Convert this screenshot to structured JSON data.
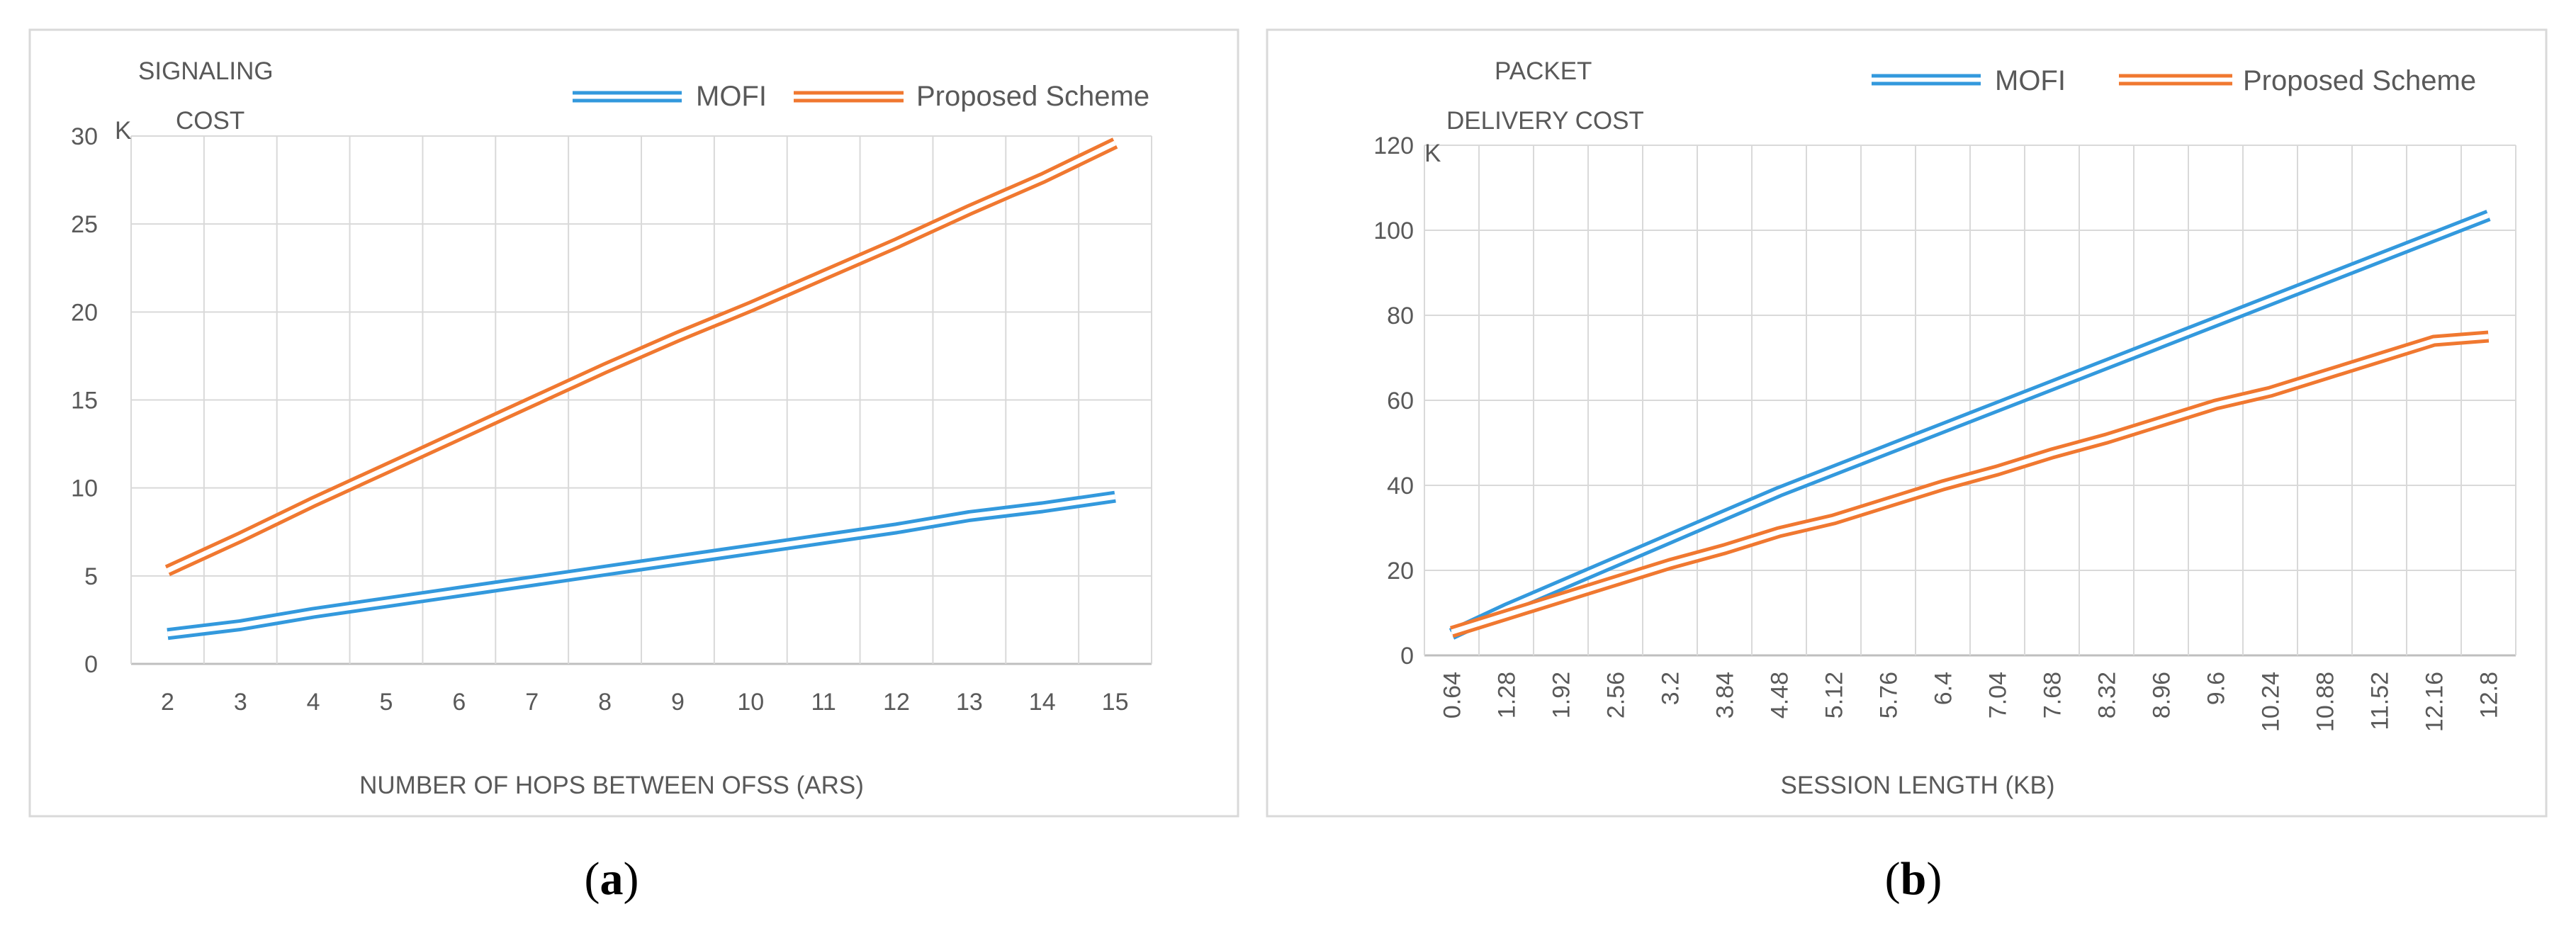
{
  "chart_data": [
    {
      "type": "line",
      "panel_label": "a",
      "ylabel_lines": [
        "SIGNALING",
        "COST"
      ],
      "y_unit": "K",
      "xlabel": "NUMBER OF HOPS BETWEEN OFSS (ARS)",
      "categories": [
        "2",
        "3",
        "4",
        "5",
        "6",
        "7",
        "8",
        "9",
        "10",
        "11",
        "12",
        "13",
        "14",
        "15"
      ],
      "ylim": [
        0,
        30
      ],
      "yticks": [
        0,
        5,
        10,
        15,
        20,
        25,
        30
      ],
      "grid": true,
      "legend_position": "top-right",
      "series": [
        {
          "name": "MOFI",
          "color": "#3399DD",
          "values": [
            1.7,
            2.2,
            2.9,
            3.5,
            4.1,
            4.7,
            5.3,
            5.9,
            6.5,
            7.1,
            7.7,
            8.4,
            8.9,
            9.5
          ]
        },
        {
          "name": "Proposed Scheme",
          "color": "#F07830",
          "values": [
            5.3,
            7.2,
            9.2,
            11.1,
            13.0,
            14.9,
            16.8,
            18.6,
            20.3,
            22.1,
            23.9,
            25.8,
            27.6,
            29.6
          ]
        }
      ]
    },
    {
      "type": "line",
      "panel_label": "b",
      "ylabel_lines": [
        "PACKET",
        "DELIVERY COST"
      ],
      "y_unit": "K",
      "xlabel": "SESSION LENGTH (KB)",
      "categories": [
        "0.64",
        "1.28",
        "1.92",
        "2.56",
        "3.2",
        "3.84",
        "4.48",
        "5.12",
        "5.76",
        "6.4",
        "7.04",
        "7.68",
        "8.32",
        "8.96",
        "9.6",
        "10.24",
        "10.88",
        "11.52",
        "12.16",
        "12.8"
      ],
      "ylim": [
        0,
        120
      ],
      "yticks": [
        0,
        20,
        40,
        60,
        80,
        100,
        120
      ],
      "grid": true,
      "legend_position": "top-right",
      "series": [
        {
          "name": "MOFI",
          "color": "#3399DD",
          "values": [
            5,
            11,
            16.5,
            22,
            27.5,
            33,
            38.5,
            43.5,
            48.5,
            53.5,
            58.5,
            63.5,
            68.5,
            73.5,
            78.5,
            83.5,
            88.5,
            93.5,
            98.5,
            103.5
          ]
        },
        {
          "name": "Proposed Scheme",
          "color": "#F07830",
          "values": [
            5.5,
            9.5,
            13.5,
            17.5,
            21.5,
            25,
            29,
            32,
            36,
            40,
            43.5,
            47.5,
            51,
            55,
            59,
            62,
            66,
            70,
            74,
            75
          ]
        }
      ]
    }
  ]
}
